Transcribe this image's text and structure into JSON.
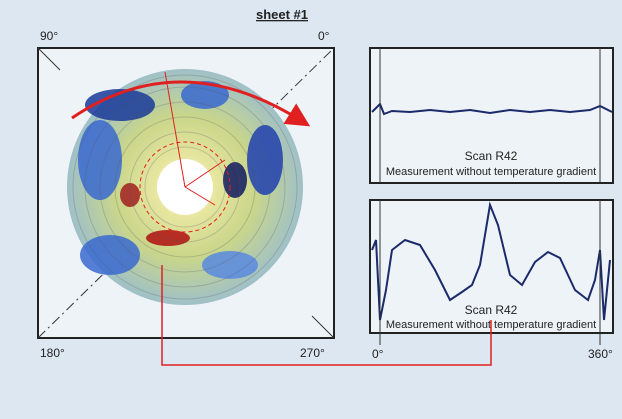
{
  "header": {
    "title": "sheet #1"
  },
  "polar_map": {
    "angles": [
      "90°",
      "0°",
      "180°",
      "270°"
    ]
  },
  "plots": [
    {
      "title": "Scan R42",
      "subtitle": "Measurement without temperature gradient"
    },
    {
      "title": "Scan R42",
      "subtitle": "Measurement without temperature gradient"
    }
  ],
  "x_axis": {
    "start": "0°",
    "end": "360°"
  }
}
